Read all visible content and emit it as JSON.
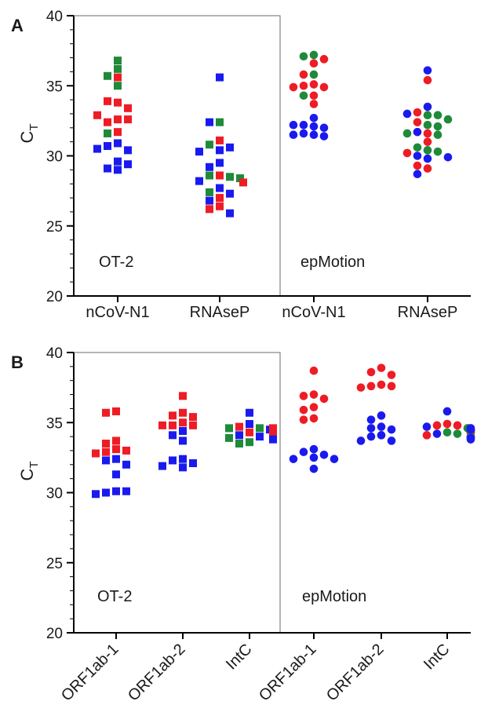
{
  "chart_data": [
    {
      "type": "scatter",
      "panel_label": "A",
      "ylabel": "C",
      "ylabel_sub": "T",
      "ylim": [
        20,
        40
      ],
      "yticks": [
        20,
        25,
        30,
        35,
        40
      ],
      "box_label": "OT-2",
      "outside_label": "epMotion",
      "colors": {
        "red": "#ee1c25",
        "blue": "#1a1aee",
        "green": "#1f8a3a"
      },
      "groups": [
        {
          "label": "nCoV-N1",
          "method": "OT-2",
          "marker": "square",
          "points": [
            {
              "c": "green",
              "y": 36.8
            },
            {
              "c": "green",
              "y": 36.2
            },
            {
              "c": "red",
              "y": 35.6
            },
            {
              "c": "green",
              "y": 35.7
            },
            {
              "c": "green",
              "y": 35.0
            },
            {
              "c": "red",
              "y": 33.8
            },
            {
              "c": "red",
              "y": 33.9
            },
            {
              "c": "red",
              "y": 33.4
            },
            {
              "c": "red",
              "y": 32.6
            },
            {
              "c": "red",
              "y": 32.4
            },
            {
              "c": "red",
              "y": 32.6
            },
            {
              "c": "red",
              "y": 32.9
            },
            {
              "c": "red",
              "y": 31.7
            },
            {
              "c": "green",
              "y": 31.6
            },
            {
              "c": "blue",
              "y": 30.9
            },
            {
              "c": "blue",
              "y": 30.7
            },
            {
              "c": "blue",
              "y": 30.4
            },
            {
              "c": "blue",
              "y": 30.5
            },
            {
              "c": "blue",
              "y": 29.6
            },
            {
              "c": "blue",
              "y": 29.0
            },
            {
              "c": "blue",
              "y": 29.1
            },
            {
              "c": "blue",
              "y": 29.4
            }
          ]
        },
        {
          "label": "RNAseP",
          "method": "OT-2",
          "marker": "square",
          "points": [
            {
              "c": "blue",
              "y": 35.6
            },
            {
              "c": "green",
              "y": 32.4
            },
            {
              "c": "blue",
              "y": 32.4
            },
            {
              "c": "red",
              "y": 31.1
            },
            {
              "c": "green",
              "y": 30.8
            },
            {
              "c": "blue",
              "y": 30.6
            },
            {
              "c": "blue",
              "y": 30.4
            },
            {
              "c": "blue",
              "y": 30.3
            },
            {
              "c": "blue",
              "y": 29.5
            },
            {
              "c": "blue",
              "y": 29.2
            },
            {
              "c": "red",
              "y": 28.6
            },
            {
              "c": "green",
              "y": 28.6
            },
            {
              "c": "green",
              "y": 28.5
            },
            {
              "c": "blue",
              "y": 28.2
            },
            {
              "c": "green",
              "y": 28.4
            },
            {
              "c": "red",
              "y": 28.1
            },
            {
              "c": "blue",
              "y": 27.7
            },
            {
              "c": "green",
              "y": 27.4
            },
            {
              "c": "red",
              "y": 27.0
            },
            {
              "c": "blue",
              "y": 26.8
            },
            {
              "c": "red",
              "y": 26.4
            },
            {
              "c": "red",
              "y": 26.2
            },
            {
              "c": "blue",
              "y": 25.9
            },
            {
              "c": "blue",
              "y": 27.3
            }
          ]
        },
        {
          "label": "nCoV-N1",
          "method": "epMotion",
          "marker": "circle",
          "points": [
            {
              "c": "green",
              "y": 37.2
            },
            {
              "c": "green",
              "y": 37.1
            },
            {
              "c": "red",
              "y": 36.9
            },
            {
              "c": "red",
              "y": 36.6
            },
            {
              "c": "green",
              "y": 35.8
            },
            {
              "c": "red",
              "y": 35.8
            },
            {
              "c": "red",
              "y": 35.1
            },
            {
              "c": "red",
              "y": 35.0
            },
            {
              "c": "red",
              "y": 34.9
            },
            {
              "c": "red",
              "y": 34.9
            },
            {
              "c": "red",
              "y": 34.3
            },
            {
              "c": "green",
              "y": 34.3
            },
            {
              "c": "red",
              "y": 33.7
            },
            {
              "c": "blue",
              "y": 32.7
            },
            {
              "c": "blue",
              "y": 32.2
            },
            {
              "c": "blue",
              "y": 32.1
            },
            {
              "c": "blue",
              "y": 32.0
            },
            {
              "c": "blue",
              "y": 32.2
            },
            {
              "c": "blue",
              "y": 31.6
            },
            {
              "c": "blue",
              "y": 31.5
            },
            {
              "c": "blue",
              "y": 31.4
            },
            {
              "c": "blue",
              "y": 31.5
            }
          ]
        },
        {
          "label": "RNAseP",
          "method": "epMotion",
          "marker": "circle",
          "points": [
            {
              "c": "blue",
              "y": 36.1
            },
            {
              "c": "red",
              "y": 35.4
            },
            {
              "c": "blue",
              "y": 33.5
            },
            {
              "c": "red",
              "y": 33.1
            },
            {
              "c": "green",
              "y": 32.9
            },
            {
              "c": "green",
              "y": 32.9
            },
            {
              "c": "blue",
              "y": 33.0
            },
            {
              "c": "green",
              "y": 32.6
            },
            {
              "c": "green",
              "y": 32.2
            },
            {
              "c": "red",
              "y": 32.4
            },
            {
              "c": "green",
              "y": 32.1
            },
            {
              "c": "blue",
              "y": 31.7
            },
            {
              "c": "red",
              "y": 31.6
            },
            {
              "c": "green",
              "y": 31.5
            },
            {
              "c": "green",
              "y": 31.6
            },
            {
              "c": "red",
              "y": 31.0
            },
            {
              "c": "green",
              "y": 30.6
            },
            {
              "c": "green",
              "y": 30.4
            },
            {
              "c": "green",
              "y": 30.3
            },
            {
              "c": "red",
              "y": 30.2
            },
            {
              "c": "blue",
              "y": 30.0
            },
            {
              "c": "blue",
              "y": 29.9
            },
            {
              "c": "blue",
              "y": 29.8
            },
            {
              "c": "red",
              "y": 29.3
            },
            {
              "c": "red",
              "y": 29.1
            },
            {
              "c": "blue",
              "y": 28.7
            }
          ]
        }
      ]
    },
    {
      "type": "scatter",
      "panel_label": "B",
      "ylabel": "C",
      "ylabel_sub": "T",
      "ylim": [
        20,
        40
      ],
      "yticks": [
        20,
        25,
        30,
        35,
        40
      ],
      "box_label": "OT-2",
      "outside_label": "epMotion",
      "colors": {
        "red": "#ee1c25",
        "blue": "#1a1aee",
        "green": "#1f8a3a"
      },
      "groups": [
        {
          "label": "ORF1ab-1",
          "method": "OT-2",
          "marker": "square",
          "points": [
            {
              "c": "red",
              "y": 35.8
            },
            {
              "c": "red",
              "y": 35.7
            },
            {
              "c": "red",
              "y": 33.7
            },
            {
              "c": "red",
              "y": 33.5
            },
            {
              "c": "red",
              "y": 33.1
            },
            {
              "c": "red",
              "y": 33.0
            },
            {
              "c": "red",
              "y": 32.9
            },
            {
              "c": "red",
              "y": 32.8
            },
            {
              "c": "blue",
              "y": 32.4
            },
            {
              "c": "blue",
              "y": 32.3
            },
            {
              "c": "blue",
              "y": 32.0
            },
            {
              "c": "blue",
              "y": 31.3
            },
            {
              "c": "blue",
              "y": 30.1
            },
            {
              "c": "blue",
              "y": 30.0
            },
            {
              "c": "blue",
              "y": 30.1
            },
            {
              "c": "blue",
              "y": 29.9
            }
          ]
        },
        {
          "label": "ORF1ab-2",
          "method": "OT-2",
          "marker": "square",
          "points": [
            {
              "c": "red",
              "y": 36.9
            },
            {
              "c": "red",
              "y": 35.7
            },
            {
              "c": "red",
              "y": 35.5
            },
            {
              "c": "red",
              "y": 35.4
            },
            {
              "c": "red",
              "y": 35.0
            },
            {
              "c": "red",
              "y": 34.8
            },
            {
              "c": "red",
              "y": 34.8
            },
            {
              "c": "red",
              "y": 34.8
            },
            {
              "c": "blue",
              "y": 34.4
            },
            {
              "c": "blue",
              "y": 34.1
            },
            {
              "c": "blue",
              "y": 33.7
            },
            {
              "c": "blue",
              "y": 32.4
            },
            {
              "c": "blue",
              "y": 32.3
            },
            {
              "c": "blue",
              "y": 32.1
            },
            {
              "c": "blue",
              "y": 31.9
            },
            {
              "c": "blue",
              "y": 31.8
            }
          ]
        },
        {
          "label": "IntC",
          "method": "OT-2",
          "marker": "square",
          "points": [
            {
              "c": "blue",
              "y": 35.7
            },
            {
              "c": "blue",
              "y": 34.9
            },
            {
              "c": "red",
              "y": 34.7
            },
            {
              "c": "green",
              "y": 34.6
            },
            {
              "c": "green",
              "y": 34.6
            },
            {
              "c": "blue",
              "y": 34.5
            },
            {
              "c": "red",
              "y": 34.5
            },
            {
              "c": "red",
              "y": 34.4
            },
            {
              "c": "red",
              "y": 34.3
            },
            {
              "c": "green",
              "y": 34.4
            },
            {
              "c": "blue",
              "y": 34.3
            },
            {
              "c": "red",
              "y": 34.3
            },
            {
              "c": "green",
              "y": 34.3
            },
            {
              "c": "blue",
              "y": 34.2
            },
            {
              "c": "red",
              "y": 34.3
            },
            {
              "c": "blue",
              "y": 34.1
            },
            {
              "c": "blue",
              "y": 34.0
            },
            {
              "c": "green",
              "y": 33.9
            },
            {
              "c": "blue",
              "y": 33.8
            },
            {
              "c": "green",
              "y": 33.6
            },
            {
              "c": "green",
              "y": 33.5
            },
            {
              "c": "red",
              "y": 34.6
            }
          ]
        },
        {
          "label": "ORF1ab-1",
          "method": "epMotion",
          "marker": "circle",
          "points": [
            {
              "c": "red",
              "y": 38.7
            },
            {
              "c": "red",
              "y": 37.0
            },
            {
              "c": "red",
              "y": 36.9
            },
            {
              "c": "red",
              "y": 36.7
            },
            {
              "c": "red",
              "y": 36.1
            },
            {
              "c": "red",
              "y": 35.9
            },
            {
              "c": "red",
              "y": 35.3
            },
            {
              "c": "red",
              "y": 35.2
            },
            {
              "c": "blue",
              "y": 33.1
            },
            {
              "c": "blue",
              "y": 32.9
            },
            {
              "c": "blue",
              "y": 32.7
            },
            {
              "c": "blue",
              "y": 32.5
            },
            {
              "c": "blue",
              "y": 32.4
            },
            {
              "c": "blue",
              "y": 32.4
            },
            {
              "c": "blue",
              "y": 31.7
            }
          ]
        },
        {
          "label": "ORF1ab-2",
          "method": "epMotion",
          "marker": "circle",
          "points": [
            {
              "c": "red",
              "y": 38.9
            },
            {
              "c": "red",
              "y": 38.6
            },
            {
              "c": "red",
              "y": 38.4
            },
            {
              "c": "red",
              "y": 37.7
            },
            {
              "c": "red",
              "y": 37.6
            },
            {
              "c": "red",
              "y": 37.6
            },
            {
              "c": "red",
              "y": 37.5
            },
            {
              "c": "blue",
              "y": 35.5
            },
            {
              "c": "blue",
              "y": 35.2
            },
            {
              "c": "blue",
              "y": 34.7
            },
            {
              "c": "blue",
              "y": 34.6
            },
            {
              "c": "blue",
              "y": 34.5
            },
            {
              "c": "blue",
              "y": 34.1
            },
            {
              "c": "blue",
              "y": 34.0
            },
            {
              "c": "blue",
              "y": 33.7
            },
            {
              "c": "blue",
              "y": 33.7
            }
          ]
        },
        {
          "label": "IntC",
          "method": "epMotion",
          "marker": "circle",
          "points": [
            {
              "c": "blue",
              "y": 35.8
            },
            {
              "c": "red",
              "y": 34.9
            },
            {
              "c": "red",
              "y": 34.8
            },
            {
              "c": "red",
              "y": 34.8
            },
            {
              "c": "blue",
              "y": 34.7
            },
            {
              "c": "green",
              "y": 34.6
            },
            {
              "c": "blue",
              "y": 34.6
            },
            {
              "c": "red",
              "y": 34.5
            },
            {
              "c": "blue",
              "y": 34.5
            },
            {
              "c": "green",
              "y": 34.4
            },
            {
              "c": "blue",
              "y": 34.4
            },
            {
              "c": "green",
              "y": 34.3
            },
            {
              "c": "blue",
              "y": 34.3
            },
            {
              "c": "red",
              "y": 34.3
            },
            {
              "c": "blue",
              "y": 34.2
            },
            {
              "c": "green",
              "y": 34.2
            },
            {
              "c": "red",
              "y": 34.1
            },
            {
              "c": "blue",
              "y": 34.0
            },
            {
              "c": "green",
              "y": 34.0
            },
            {
              "c": "blue",
              "y": 33.9
            },
            {
              "c": "blue",
              "y": 33.8
            },
            {
              "c": "blue",
              "y": 34.5
            }
          ]
        }
      ]
    }
  ]
}
